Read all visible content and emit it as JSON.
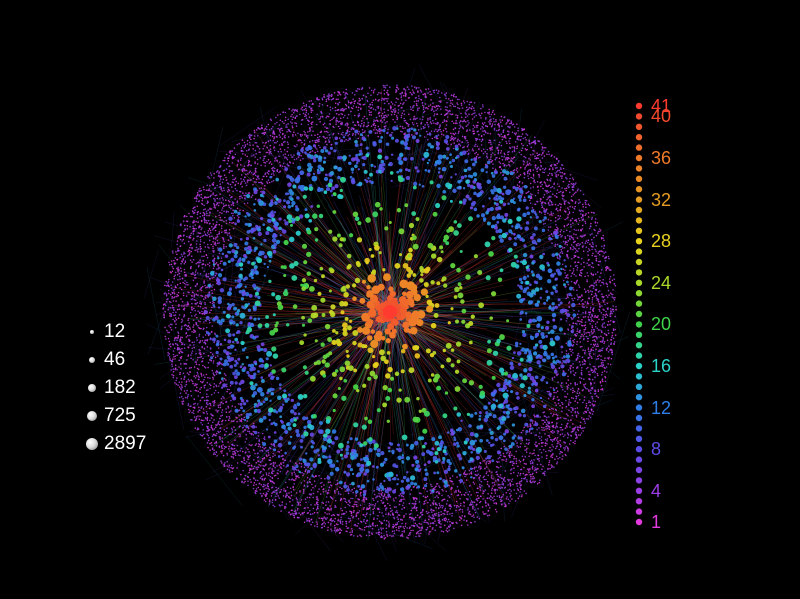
{
  "size_legend": {
    "entries": [
      {
        "label": "12"
      },
      {
        "label": "46"
      },
      {
        "label": "182"
      },
      {
        "label": "725"
      },
      {
        "label": "2897"
      }
    ]
  },
  "color_legend": {
    "min": 1,
    "max": 41,
    "labels": [
      {
        "value": 41,
        "text": "41",
        "color": "#ff3b30"
      },
      {
        "value": 40,
        "text": "40",
        "color": "#f24a2e"
      },
      {
        "value": 36,
        "text": "36",
        "color": "#ef7a2a"
      },
      {
        "value": 32,
        "text": "32",
        "color": "#e59c22"
      },
      {
        "value": 28,
        "text": "28",
        "color": "#e8d21e"
      },
      {
        "value": 24,
        "text": "24",
        "color": "#a9d82a"
      },
      {
        "value": 20,
        "text": "20",
        "color": "#3fd24a"
      },
      {
        "value": 16,
        "text": "16",
        "color": "#2ad2c8"
      },
      {
        "value": 12,
        "text": "12",
        "color": "#2f7ee8"
      },
      {
        "value": 8,
        "text": "8",
        "color": "#5b4ce8"
      },
      {
        "value": 4,
        "text": "4",
        "color": "#9b3ee6"
      },
      {
        "value": 1,
        "text": "1",
        "color": "#e43be0"
      }
    ]
  },
  "colors": {
    "background": "#000000",
    "core": "#ff3b30",
    "outer_shell": "#c44bd8",
    "edge": "#ff3c3c"
  }
}
